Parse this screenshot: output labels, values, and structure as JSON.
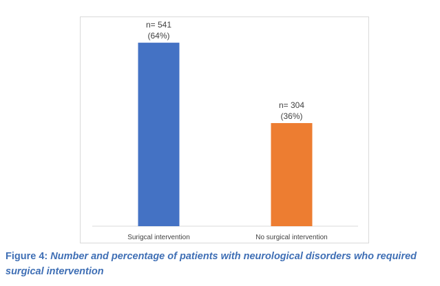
{
  "chart_data": {
    "type": "bar",
    "categories": [
      "Surigcal intervention",
      "No surgical intervention"
    ],
    "values": [
      541,
      304
    ],
    "percentages": [
      "64%",
      "36%"
    ],
    "data_labels": [
      {
        "count": "n= 541",
        "percent": "(64%)"
      },
      {
        "count": "n= 304",
        "percent": "(36%)"
      }
    ],
    "colors": [
      "#4472c4",
      "#ed7d31"
    ],
    "ylim": [
      0,
      600
    ],
    "title": "",
    "xlabel": "",
    "ylabel": "",
    "grid": false,
    "legend": "none"
  },
  "caption": {
    "lead": "Figure 4: ",
    "text": "Number and percentage of patients with neurological disorders who required surgical intervention"
  }
}
